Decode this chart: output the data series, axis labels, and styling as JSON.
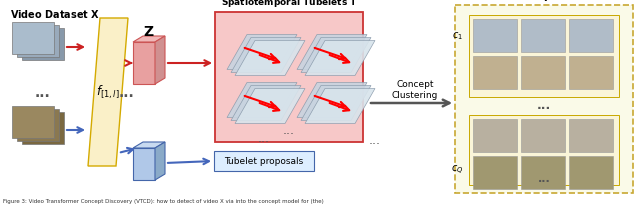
{
  "caption": "Figure 3: Video Transformer Concept Discovery (VTCD): how to detect of video X via into the concept model for (the)",
  "bg_color": "#ffffff",
  "video_dataset_label": "Video Dataset $\\mathbf{X}$",
  "z_label": "$\\mathbf{Z}$",
  "f_label": "$f_{[1,l]}$",
  "spatiotemporal_label": "Spatiotemporal Tubelets $\\mathbf{T}$",
  "tubelet_proposals_label": "Tubelet proposals",
  "concepts_label": "Concepts  $\\mathbf{C}_l$",
  "concept_clustering_label": "Concept\nClustering",
  "c1_label": "$c_1$",
  "cQ_label": "$c_Q$",
  "yellow_fill": "#faf0c8",
  "yellow_edge": "#d4aa00",
  "red_fill": "#f7c8c8",
  "red_edge": "#cc3333",
  "blue_fill": "#c8d8f0",
  "blue_edge": "#4466aa",
  "dashed_fill": "#fafae8",
  "dashed_edge": "#c8a832",
  "inner_yellow_fill": "#faf5d8",
  "inner_yellow_edge": "#c8a800",
  "arrow_red": "#cc2222",
  "arrow_blue": "#4466bb",
  "arrow_dark": "#555555",
  "z_box_fill": "#e8a0a0",
  "z_box_edge": "#cc5555",
  "z_top_fill": "#f0b8b8",
  "z_right_fill": "#d09090",
  "blue3d_fill": "#b0c8e8",
  "blue3d_edge": "#4466aa",
  "blue3d_top": "#c8daf0",
  "blue3d_right": "#8aaac8",
  "frame_top_colors": [
    "#90a8c0",
    "#a0b8cc",
    "#b0c4d4"
  ],
  "frame_bot_colors": [
    "#807040",
    "#908050",
    "#a09060"
  ],
  "tubelet_frame_color": "#c8d4e0",
  "tubelet_frame_edge": "#8899aa",
  "dots_color": "#555555"
}
